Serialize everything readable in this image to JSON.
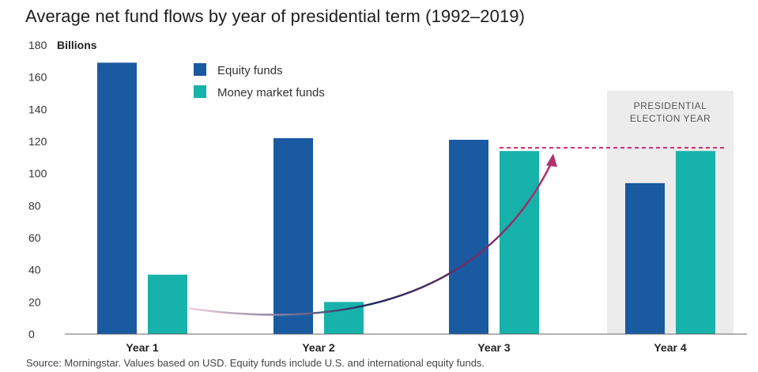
{
  "title": "Average net fund flows by year of presidential term (1992–2019)",
  "source": "Source: Morningstar. Values based on USD. Equity funds include U.S. and international equity funds.",
  "colors": {
    "equity": "#1a5aa0",
    "money": "#17b2a9",
    "arrow_start": "#f0d3df",
    "arrow_mid": "#1e2a5c",
    "arrow_end": "#b4306f",
    "dashed": "#cc2a72",
    "band": "#ececec"
  },
  "chart_data": {
    "type": "bar",
    "categories": [
      "Year 1",
      "Year 2",
      "Year 3",
      "Year 4"
    ],
    "series": [
      {
        "name": "Equity funds",
        "values": [
          169,
          122,
          121,
          94
        ]
      },
      {
        "name": "Money market funds",
        "values": [
          37,
          20,
          114,
          114
        ]
      }
    ],
    "ylabel": "Billions",
    "ylim": [
      0,
      180
    ],
    "yticks": [
      0,
      20,
      40,
      60,
      80,
      100,
      120,
      140,
      160,
      180
    ],
    "highlight": {
      "category": "Year 4",
      "label_line1": "PRESIDENTIAL",
      "label_line2": "ELECTION YEAR"
    },
    "reference_line": {
      "value": 116,
      "style": "dashed"
    },
    "legend_position": "top-center"
  }
}
